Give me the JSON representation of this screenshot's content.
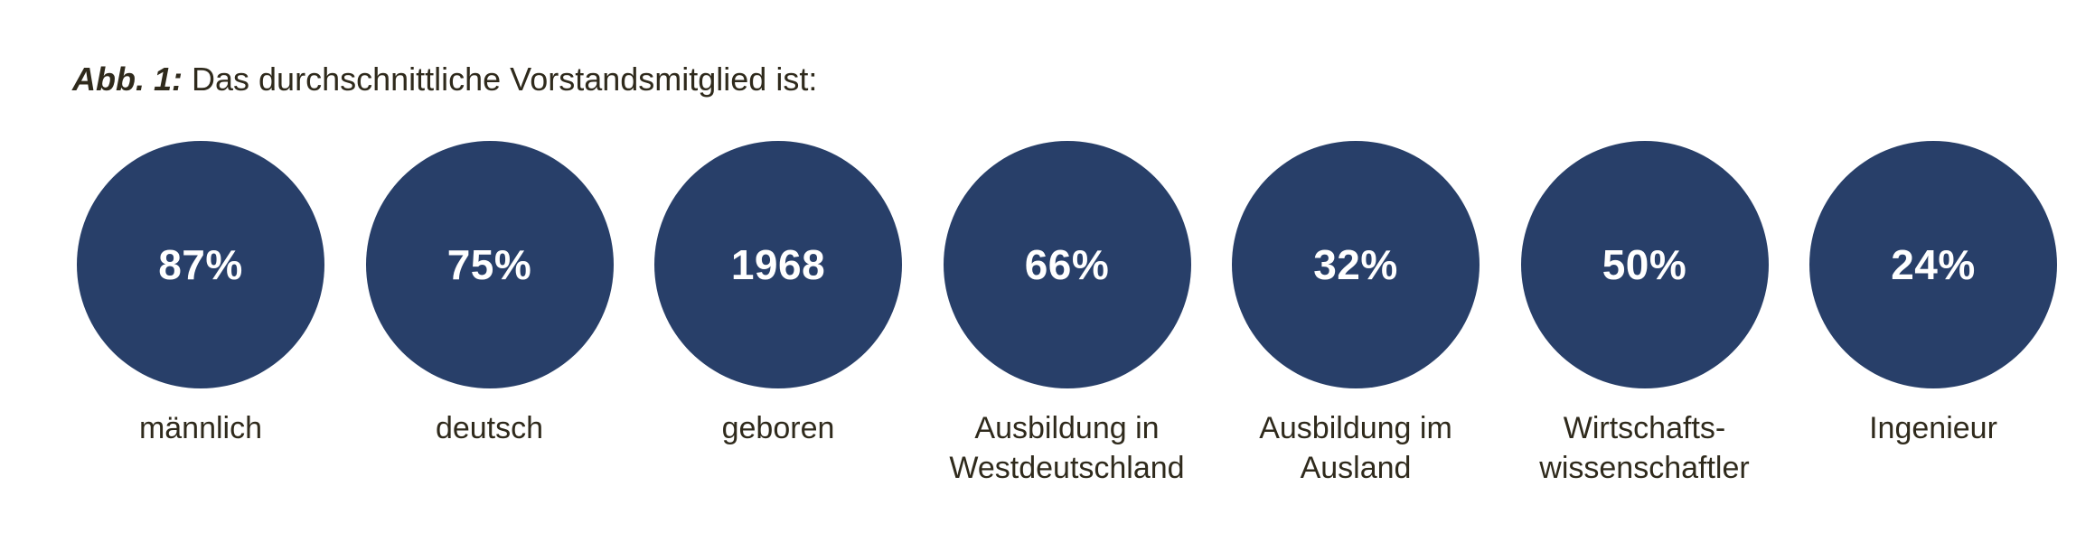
{
  "caption": {
    "label": "Abb. 1:",
    "text": "Das durchschnittliche Vorstandsmitglied ist:"
  },
  "chart_data": {
    "type": "table",
    "title": "Abb. 1: Das durchschnittliche Vorstandsmitglied ist:",
    "items": [
      {
        "value": "87%",
        "label_lines": [
          "männlich"
        ]
      },
      {
        "value": "75%",
        "label_lines": [
          "deutsch"
        ]
      },
      {
        "value": "1968",
        "label_lines": [
          "geboren"
        ]
      },
      {
        "value": "66%",
        "label_lines": [
          "Ausbildung in",
          "Westdeutschland"
        ]
      },
      {
        "value": "32%",
        "label_lines": [
          "Ausbildung im",
          "Ausland"
        ]
      },
      {
        "value": "50%",
        "label_lines": [
          "Wirtschafts-",
          "wissenschaftler"
        ]
      },
      {
        "value": "24%",
        "label_lines": [
          "Ingenieur"
        ]
      }
    ]
  },
  "colors": {
    "circle": "#283f69",
    "text": "#2f2a1c"
  }
}
